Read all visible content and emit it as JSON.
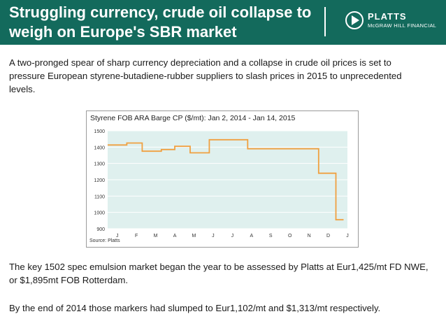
{
  "header": {
    "title": "Struggling currency, crude oil collapse to weigh on Europe's SBR market",
    "logo_name": "PLATTS",
    "logo_sub": "McGRAW HILL FINANCIAL"
  },
  "body": {
    "intro": "A two-pronged spear of sharp currency depreciation and a collapse in crude oil prices is set to pressure European styrene-butadiene-rubber suppliers to slash prices in 2015 to unprecedented levels.",
    "para2": "The key 1502 spec emulsion market began the year to be assessed by Platts at Eur1,425/mt FD NWE, or $1,895mt FOB Rotterdam.",
    "para3": "By the end of 2014 those markers had slumped to Eur1,102/mt and $1,313/mt respectively."
  },
  "chart_data": {
    "type": "line",
    "title": "Styrene FOB ARA Barge CP ($/mt): Jan 2, 2014 - Jan 14, 2015",
    "source": "Source: Platts",
    "xlabel": "",
    "ylabel": "",
    "ylim": [
      900,
      1500
    ],
    "yticks": [
      900,
      1000,
      1100,
      1200,
      1300,
      1400,
      1500
    ],
    "x_tick_labels": [
      "J",
      "F",
      "M",
      "A",
      "M",
      "J",
      "J",
      "A",
      "S",
      "O",
      "N",
      "D",
      "J"
    ],
    "xlim": [
      0,
      12.5
    ],
    "grid": true,
    "series": [
      {
        "color": "#f0a040",
        "points": [
          [
            0.0,
            1413
          ],
          [
            1.0,
            1413
          ],
          [
            1.0,
            1425
          ],
          [
            1.8,
            1425
          ],
          [
            1.8,
            1375
          ],
          [
            2.8,
            1375
          ],
          [
            2.8,
            1385
          ],
          [
            3.5,
            1385
          ],
          [
            3.5,
            1405
          ],
          [
            4.3,
            1405
          ],
          [
            4.3,
            1365
          ],
          [
            5.3,
            1365
          ],
          [
            5.3,
            1445
          ],
          [
            7.3,
            1445
          ],
          [
            7.3,
            1390
          ],
          [
            11.0,
            1390
          ],
          [
            11.0,
            1240
          ],
          [
            11.9,
            1240
          ],
          [
            11.9,
            955
          ],
          [
            12.3,
            955
          ]
        ]
      }
    ]
  }
}
